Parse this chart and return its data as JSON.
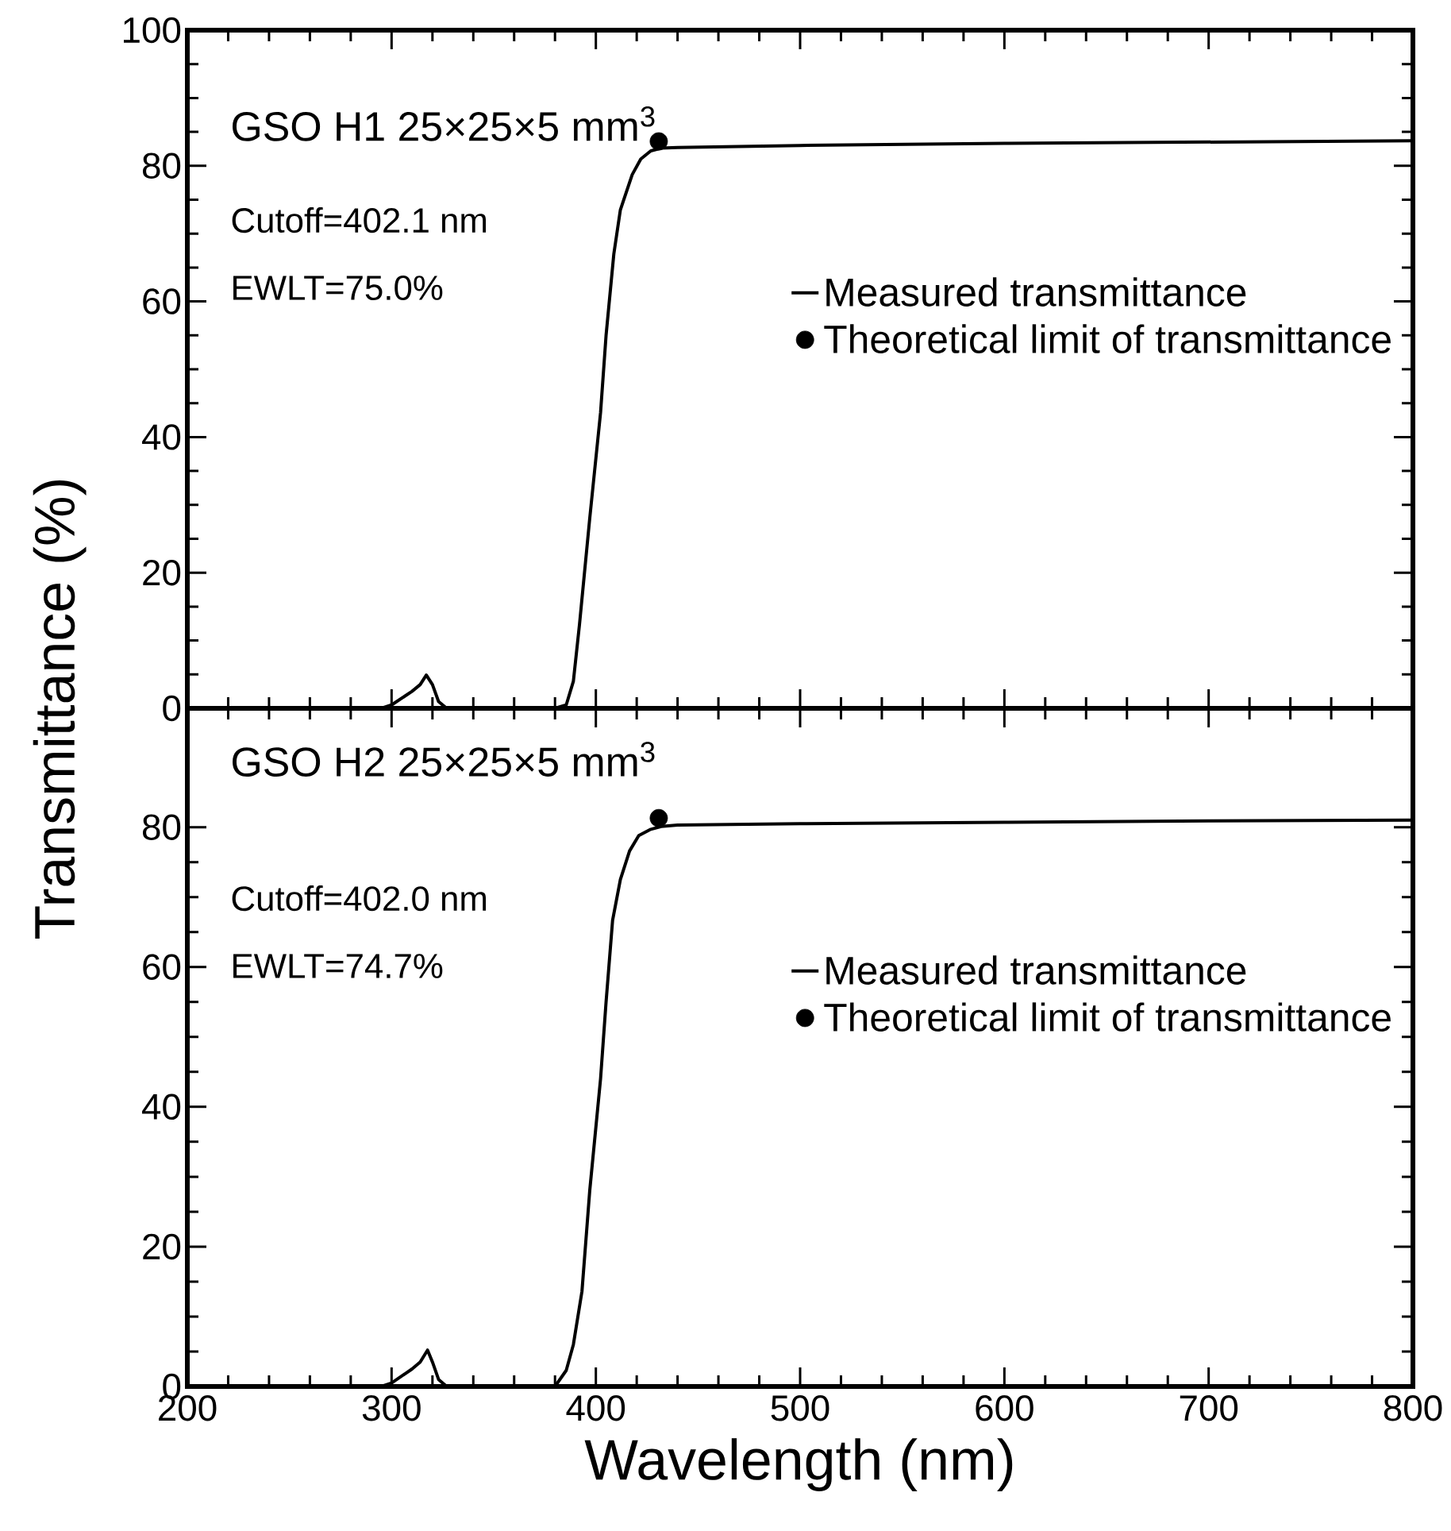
{
  "chart_data": [
    {
      "type": "line",
      "ylabel": "Transmittance (%)",
      "annotations": [
        "GSO H1  25×25×5 mm$^{3}$",
        "Cutoff=402.1 nm",
        "EWLT=75.0%"
      ],
      "xlim": [
        200,
        800
      ],
      "xticks": [
        200,
        300,
        400,
        500,
        600,
        700,
        800
      ],
      "ylim": [
        0,
        100
      ],
      "yticks": [
        0,
        20,
        40,
        60,
        80,
        100
      ],
      "tick_labels": "y",
      "legend": "right",
      "series": [
        {
          "name": "Measured transmittance",
          "color": "#000000",
          "marker": "none",
          "x": [
            200,
            250,
            295,
            300,
            305,
            310,
            314,
            317,
            320,
            323,
            327,
            350,
            380,
            385.5,
            389,
            392,
            397,
            402.3,
            405,
            408.8,
            412,
            417.8,
            422,
            426.9,
            432,
            440,
            500,
            600,
            700,
            800
          ],
          "values": [
            0,
            0,
            0,
            0.5,
            1.5,
            2.5,
            3.5,
            4.9,
            3.5,
            1,
            0,
            0,
            0,
            0.5,
            4,
            12.4,
            28,
            43.6,
            55,
            67,
            73.5,
            78.7,
            81,
            82.2,
            82.6,
            82.7,
            83,
            83.3,
            83.5,
            83.7
          ]
        },
        {
          "name": "Theoretical limit of transmittance",
          "type": "scatter",
          "color": "#000000",
          "marker": "circle",
          "x": [
            430.8
          ],
          "values": [
            83.6
          ]
        }
      ]
    },
    {
      "type": "line",
      "xlabel": "Wavelength (nm)",
      "annotations": [
        "GSO H2  25×25×5 mm$^{3}$",
        "Cutoff=402.0 nm",
        "EWLT=74.7%"
      ],
      "xlim": [
        200,
        800
      ],
      "xticks": [
        200,
        300,
        400,
        500,
        600,
        700,
        800
      ],
      "ylim": [
        0,
        97
      ],
      "yticks": [
        0,
        20,
        40,
        60,
        80
      ],
      "legend": "right",
      "series": [
        {
          "name": "Measured transmittance",
          "color": "#000000",
          "marker": "none",
          "x": [
            200,
            250,
            295,
            300,
            305,
            310,
            314,
            317.6,
            320,
            323,
            327,
            350,
            380,
            385.5,
            389,
            393.2,
            397,
            402.3,
            405,
            408.2,
            412,
            416.5,
            421,
            426.9,
            432,
            440,
            500,
            600,
            700,
            800
          ],
          "values": [
            0,
            0,
            0,
            0.5,
            1.5,
            2.5,
            3.5,
            5.2,
            3.5,
            1,
            0,
            0,
            0,
            2.3,
            6,
            13.6,
            28,
            44,
            55,
            66.7,
            72.5,
            76.6,
            78.8,
            79.7,
            80.1,
            80.3,
            80.5,
            80.7,
            80.9,
            81
          ]
        },
        {
          "name": "Theoretical limit of transmittance",
          "type": "scatter",
          "color": "#000000",
          "marker": "circle",
          "x": [
            430.8
          ],
          "values": [
            81.3
          ]
        }
      ]
    }
  ]
}
